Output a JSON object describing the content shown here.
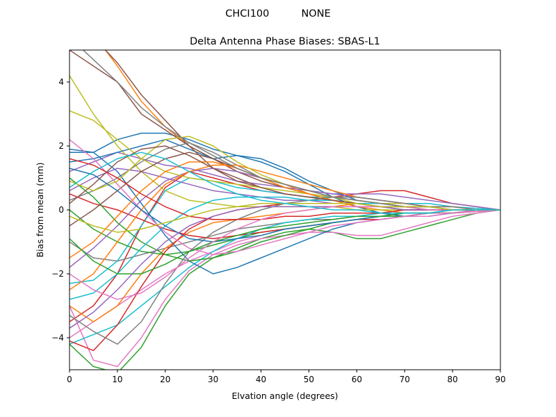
{
  "suptitle": "CHCI100          NONE",
  "chart_data": {
    "type": "line",
    "title": "Delta Antenna Phase Biases: SBAS-L1",
    "xlabel": "Elvation angle (degrees)",
    "ylabel": "Bias from mean (mm)",
    "xlim": [
      0,
      90
    ],
    "ylim": [
      -5,
      5
    ],
    "xticks": [
      0,
      10,
      20,
      30,
      40,
      50,
      60,
      70,
      80,
      90
    ],
    "yticks": [
      -4,
      -2,
      0,
      2,
      4
    ],
    "grid": false,
    "legend": "none",
    "x": [
      0,
      5,
      10,
      15,
      20,
      25,
      30,
      35,
      40,
      45,
      50,
      55,
      60,
      65,
      70,
      75,
      80,
      85,
      90
    ],
    "series": [
      {
        "values": [
          1.8,
          1.8,
          2.2,
          2.4,
          2.4,
          2.2,
          1.9,
          1.7,
          1.5,
          1.2,
          0.8,
          0.4,
          0.1,
          -0.1,
          -0.2,
          -0.2,
          -0.1,
          -0.05,
          0
        ]
      },
      {
        "values": [
          6.0,
          5.5,
          4.5,
          3.4,
          2.6,
          2.0,
          1.6,
          1.2,
          1.0,
          0.8,
          0.5,
          0.3,
          0.1,
          0.0,
          -0.1,
          -0.1,
          -0.1,
          -0.05,
          0
        ]
      },
      {
        "values": [
          -4.2,
          -4.9,
          -5.1,
          -4.3,
          -3.0,
          -2.0,
          -1.5,
          -1.2,
          -0.9,
          -0.7,
          -0.6,
          -0.7,
          -0.9,
          -0.9,
          -0.7,
          -0.5,
          -0.3,
          -0.1,
          0
        ]
      },
      {
        "values": [
          -3.5,
          -3.0,
          -2.0,
          -0.5,
          0.7,
          1.2,
          1.0,
          0.8,
          0.6,
          0.5,
          0.4,
          0.4,
          0.5,
          0.6,
          0.6,
          0.4,
          0.2,
          0.1,
          0
        ]
      },
      {
        "values": [
          1.2,
          1.5,
          1.8,
          1.6,
          1.4,
          1.3,
          1.1,
          0.9,
          0.8,
          0.7,
          0.6,
          0.5,
          0.5,
          0.5,
          0.4,
          0.3,
          0.2,
          0.1,
          0
        ]
      },
      {
        "values": [
          5.0,
          4.5,
          4.0,
          3.0,
          2.5,
          2.0,
          1.6,
          1.2,
          0.9,
          0.7,
          0.5,
          0.3,
          0.2,
          0.1,
          0.0,
          0.0,
          0.0,
          0.0,
          0
        ]
      },
      {
        "values": [
          -4.0,
          -3.5,
          -3.0,
          -2.5,
          -2.0,
          -1.6,
          -1.3,
          -1.0,
          -0.8,
          -0.6,
          -0.5,
          -0.4,
          -0.3,
          -0.3,
          -0.2,
          -0.2,
          -0.1,
          -0.05,
          0
        ]
      },
      {
        "values": [
          -1.0,
          -1.5,
          -1.6,
          -1.4,
          -1.2,
          -1.0,
          -0.8,
          -0.6,
          -0.5,
          -0.4,
          -0.3,
          -0.3,
          -0.2,
          -0.2,
          -0.1,
          -0.1,
          -0.1,
          0.0,
          0
        ]
      },
      {
        "values": [
          4.2,
          3.0,
          2.0,
          1.2,
          0.6,
          0.3,
          0.2,
          0.1,
          0.1,
          0.1,
          0.1,
          0.1,
          0.0,
          0.0,
          0.0,
          0.0,
          0.0,
          0.0,
          0
        ]
      },
      {
        "values": [
          -2.3,
          -2.2,
          -1.6,
          -0.5,
          0.6,
          1.0,
          0.9,
          0.7,
          0.6,
          0.5,
          0.4,
          0.4,
          0.4,
          0.3,
          0.2,
          0.2,
          0.1,
          0.05,
          0
        ]
      },
      {
        "values": [
          1.5,
          1.6,
          1.8,
          2.0,
          2.2,
          1.9,
          1.6,
          1.7,
          1.6,
          1.3,
          0.9,
          0.6,
          0.3,
          0.2,
          0.1,
          0.0,
          0.0,
          0.0,
          0
        ]
      },
      {
        "values": [
          -3.0,
          -3.5,
          -3.0,
          -2.0,
          -1.2,
          -0.7,
          -0.4,
          -0.3,
          -0.2,
          -0.1,
          0.0,
          0.1,
          0.2,
          0.2,
          0.1,
          0.1,
          0.0,
          0.0,
          0
        ]
      },
      {
        "values": [
          0.0,
          -0.6,
          -1.0,
          -1.3,
          -1.4,
          -1.3,
          -1.1,
          -0.9,
          -0.7,
          -0.6,
          -0.5,
          -0.4,
          -0.3,
          -0.2,
          -0.2,
          -0.1,
          -0.1,
          0.0,
          0
        ]
      },
      {
        "values": [
          0.5,
          0.2,
          0.0,
          -0.3,
          -0.6,
          -0.8,
          -0.9,
          -0.8,
          -0.7,
          -0.6,
          -0.5,
          -0.4,
          -0.3,
          -0.3,
          -0.2,
          -0.1,
          -0.1,
          0.0,
          0
        ]
      },
      {
        "values": [
          -1.8,
          -1.2,
          -0.5,
          0.3,
          0.9,
          1.2,
          1.3,
          1.2,
          1.0,
          0.8,
          0.6,
          0.5,
          0.4,
          0.3,
          0.2,
          0.1,
          0.1,
          0.0,
          0
        ]
      },
      {
        "values": [
          6.0,
          5.4,
          4.6,
          3.6,
          2.8,
          2.0,
          1.3,
          0.9,
          0.7,
          0.5,
          0.4,
          0.3,
          0.2,
          0.1,
          0.0,
          0.0,
          0.0,
          0.0,
          0
        ]
      },
      {
        "values": [
          -3.0,
          -4.7,
          -4.9,
          -4.0,
          -2.8,
          -1.9,
          -1.4,
          -1.1,
          -0.9,
          -0.8,
          -0.7,
          -0.7,
          -0.8,
          -0.8,
          -0.6,
          -0.4,
          -0.2,
          -0.1,
          0
        ]
      },
      {
        "values": [
          0.3,
          0.6,
          1.0,
          1.5,
          1.9,
          2.1,
          1.8,
          1.4,
          1.0,
          0.7,
          0.5,
          0.3,
          0.2,
          0.1,
          0.0,
          0.0,
          0.0,
          0.0,
          0
        ]
      },
      {
        "values": [
          3.1,
          2.8,
          2.2,
          1.6,
          1.2,
          1.0,
          0.9,
          0.8,
          0.7,
          0.6,
          0.5,
          0.4,
          0.3,
          0.2,
          0.2,
          0.1,
          0.1,
          0.0,
          0
        ]
      },
      {
        "values": [
          -4.2,
          -3.9,
          -3.6,
          -3.0,
          -2.4,
          -1.8,
          -1.3,
          -0.9,
          -0.6,
          -0.4,
          -0.3,
          -0.2,
          -0.2,
          -0.1,
          -0.1,
          -0.1,
          0.0,
          0.0,
          0
        ]
      },
      {
        "values": [
          1.9,
          1.8,
          1.2,
          0.2,
          -0.8,
          -1.6,
          -2.0,
          -1.8,
          -1.5,
          -1.2,
          -0.9,
          -0.6,
          -0.4,
          -0.3,
          -0.2,
          -0.1,
          -0.1,
          0.0,
          0
        ]
      },
      {
        "values": [
          -2.5,
          -2.0,
          -1.0,
          0.0,
          0.8,
          1.2,
          1.4,
          1.4,
          1.2,
          1.0,
          0.8,
          0.6,
          0.4,
          0.3,
          0.2,
          0.1,
          0.1,
          0.0,
          0
        ]
      },
      {
        "values": [
          1.0,
          0.4,
          -0.4,
          -1.0,
          -1.4,
          -1.6,
          -1.5,
          -1.3,
          -1.0,
          -0.8,
          -0.6,
          -0.4,
          -0.3,
          -0.2,
          -0.2,
          -0.1,
          -0.1,
          0.0,
          0
        ]
      },
      {
        "values": [
          -4.1,
          -4.4,
          -3.6,
          -2.4,
          -1.3,
          -0.6,
          -0.2,
          0.0,
          0.1,
          0.2,
          0.2,
          0.2,
          0.2,
          0.2,
          0.1,
          0.1,
          0.0,
          0.0,
          0
        ]
      },
      {
        "values": [
          0.6,
          1.0,
          1.3,
          1.2,
          1.0,
          0.8,
          0.6,
          0.5,
          0.4,
          0.3,
          0.3,
          0.2,
          0.2,
          0.1,
          0.1,
          0.1,
          0.0,
          0.0,
          0
        ]
      },
      {
        "values": [
          -0.5,
          0.0,
          0.6,
          1.2,
          1.6,
          1.8,
          1.6,
          1.3,
          1.0,
          0.8,
          0.6,
          0.4,
          0.3,
          0.2,
          0.1,
          0.1,
          0.0,
          0.0,
          0
        ]
      },
      {
        "values": [
          2.2,
          1.6,
          0.8,
          0.0,
          -0.7,
          -1.2,
          -1.4,
          -1.3,
          -1.1,
          -0.9,
          -0.7,
          -0.5,
          -0.4,
          -0.3,
          -0.2,
          -0.1,
          -0.1,
          0.0,
          0
        ]
      },
      {
        "values": [
          -3.3,
          -3.8,
          -4.2,
          -3.5,
          -2.3,
          -1.3,
          -0.7,
          -0.3,
          0.0,
          0.2,
          0.3,
          0.4,
          0.4,
          0.3,
          0.2,
          0.1,
          0.1,
          0.0,
          0
        ]
      },
      {
        "values": [
          0.9,
          0.6,
          0.9,
          1.6,
          2.2,
          2.3,
          2.0,
          1.5,
          1.1,
          0.8,
          0.6,
          0.4,
          0.2,
          0.1,
          0.1,
          0.0,
          0.0,
          0.0,
          0
        ]
      },
      {
        "values": [
          -2.8,
          -2.6,
          -2.0,
          -1.2,
          -0.5,
          0.0,
          0.3,
          0.4,
          0.4,
          0.4,
          0.3,
          0.3,
          0.2,
          0.2,
          0.1,
          0.1,
          0.0,
          0.0,
          0
        ]
      },
      {
        "values": [
          1.3,
          1.1,
          0.6,
          0.0,
          -0.5,
          -0.9,
          -1.0,
          -0.9,
          -0.8,
          -0.6,
          -0.5,
          -0.4,
          -0.3,
          -0.2,
          -0.1,
          -0.1,
          0.0,
          0.0,
          0
        ]
      },
      {
        "values": [
          -1.5,
          -1.0,
          -0.2,
          0.6,
          1.2,
          1.5,
          1.5,
          1.3,
          1.0,
          0.7,
          0.5,
          0.3,
          0.2,
          0.1,
          0.1,
          0.0,
          0.0,
          0.0,
          0
        ]
      },
      {
        "values": [
          -0.9,
          -1.6,
          -2.0,
          -2.0,
          -1.7,
          -1.3,
          -1.0,
          -0.8,
          -0.6,
          -0.5,
          -0.4,
          -0.3,
          -0.2,
          -0.2,
          -0.1,
          -0.1,
          0.0,
          0.0,
          0
        ]
      },
      {
        "values": [
          1.6,
          1.4,
          1.0,
          0.5,
          0.1,
          -0.2,
          -0.3,
          -0.3,
          -0.3,
          -0.2,
          -0.2,
          -0.1,
          -0.1,
          -0.1,
          0.0,
          0.0,
          0.0,
          0.0,
          0
        ]
      },
      {
        "values": [
          -3.7,
          -3.2,
          -2.5,
          -1.7,
          -1.0,
          -0.5,
          -0.2,
          0.0,
          0.1,
          0.1,
          0.1,
          0.1,
          0.1,
          0.1,
          0.0,
          0.0,
          0.0,
          0.0,
          0
        ]
      },
      {
        "values": [
          0.2,
          0.8,
          1.5,
          1.9,
          2.0,
          1.7,
          1.3,
          1.0,
          0.7,
          0.5,
          0.4,
          0.3,
          0.2,
          0.1,
          0.1,
          0.0,
          0.0,
          0.0,
          0
        ]
      },
      {
        "values": [
          -2.0,
          -2.5,
          -2.8,
          -2.6,
          -2.1,
          -1.5,
          -1.0,
          -0.6,
          -0.3,
          -0.1,
          0.0,
          0.1,
          0.1,
          0.1,
          0.1,
          0.0,
          0.0,
          0.0,
          0
        ]
      },
      {
        "values": [
          5.4,
          4.7,
          4.0,
          3.2,
          2.6,
          2.1,
          1.7,
          1.3,
          1.0,
          0.8,
          0.6,
          0.4,
          0.3,
          0.2,
          0.1,
          0.1,
          0.0,
          0.0,
          0
        ]
      },
      {
        "values": [
          -0.2,
          -0.5,
          -0.7,
          -0.6,
          -0.4,
          -0.2,
          0.0,
          0.1,
          0.2,
          0.2,
          0.2,
          0.2,
          0.2,
          0.1,
          0.1,
          0.1,
          0.0,
          0.0,
          0
        ]
      },
      {
        "values": [
          0.7,
          1.2,
          1.6,
          1.8,
          1.6,
          1.2,
          0.8,
          0.5,
          0.3,
          0.2,
          0.1,
          0.0,
          0.0,
          -0.1,
          -0.1,
          -0.1,
          0.0,
          0.0,
          0
        ]
      }
    ]
  },
  "colors": [
    "#1f77b4",
    "#ff7f0e",
    "#2ca02c",
    "#d62728",
    "#9467bd",
    "#8c564b",
    "#e377c2",
    "#7f7f7f",
    "#bcbd22",
    "#17becf"
  ]
}
